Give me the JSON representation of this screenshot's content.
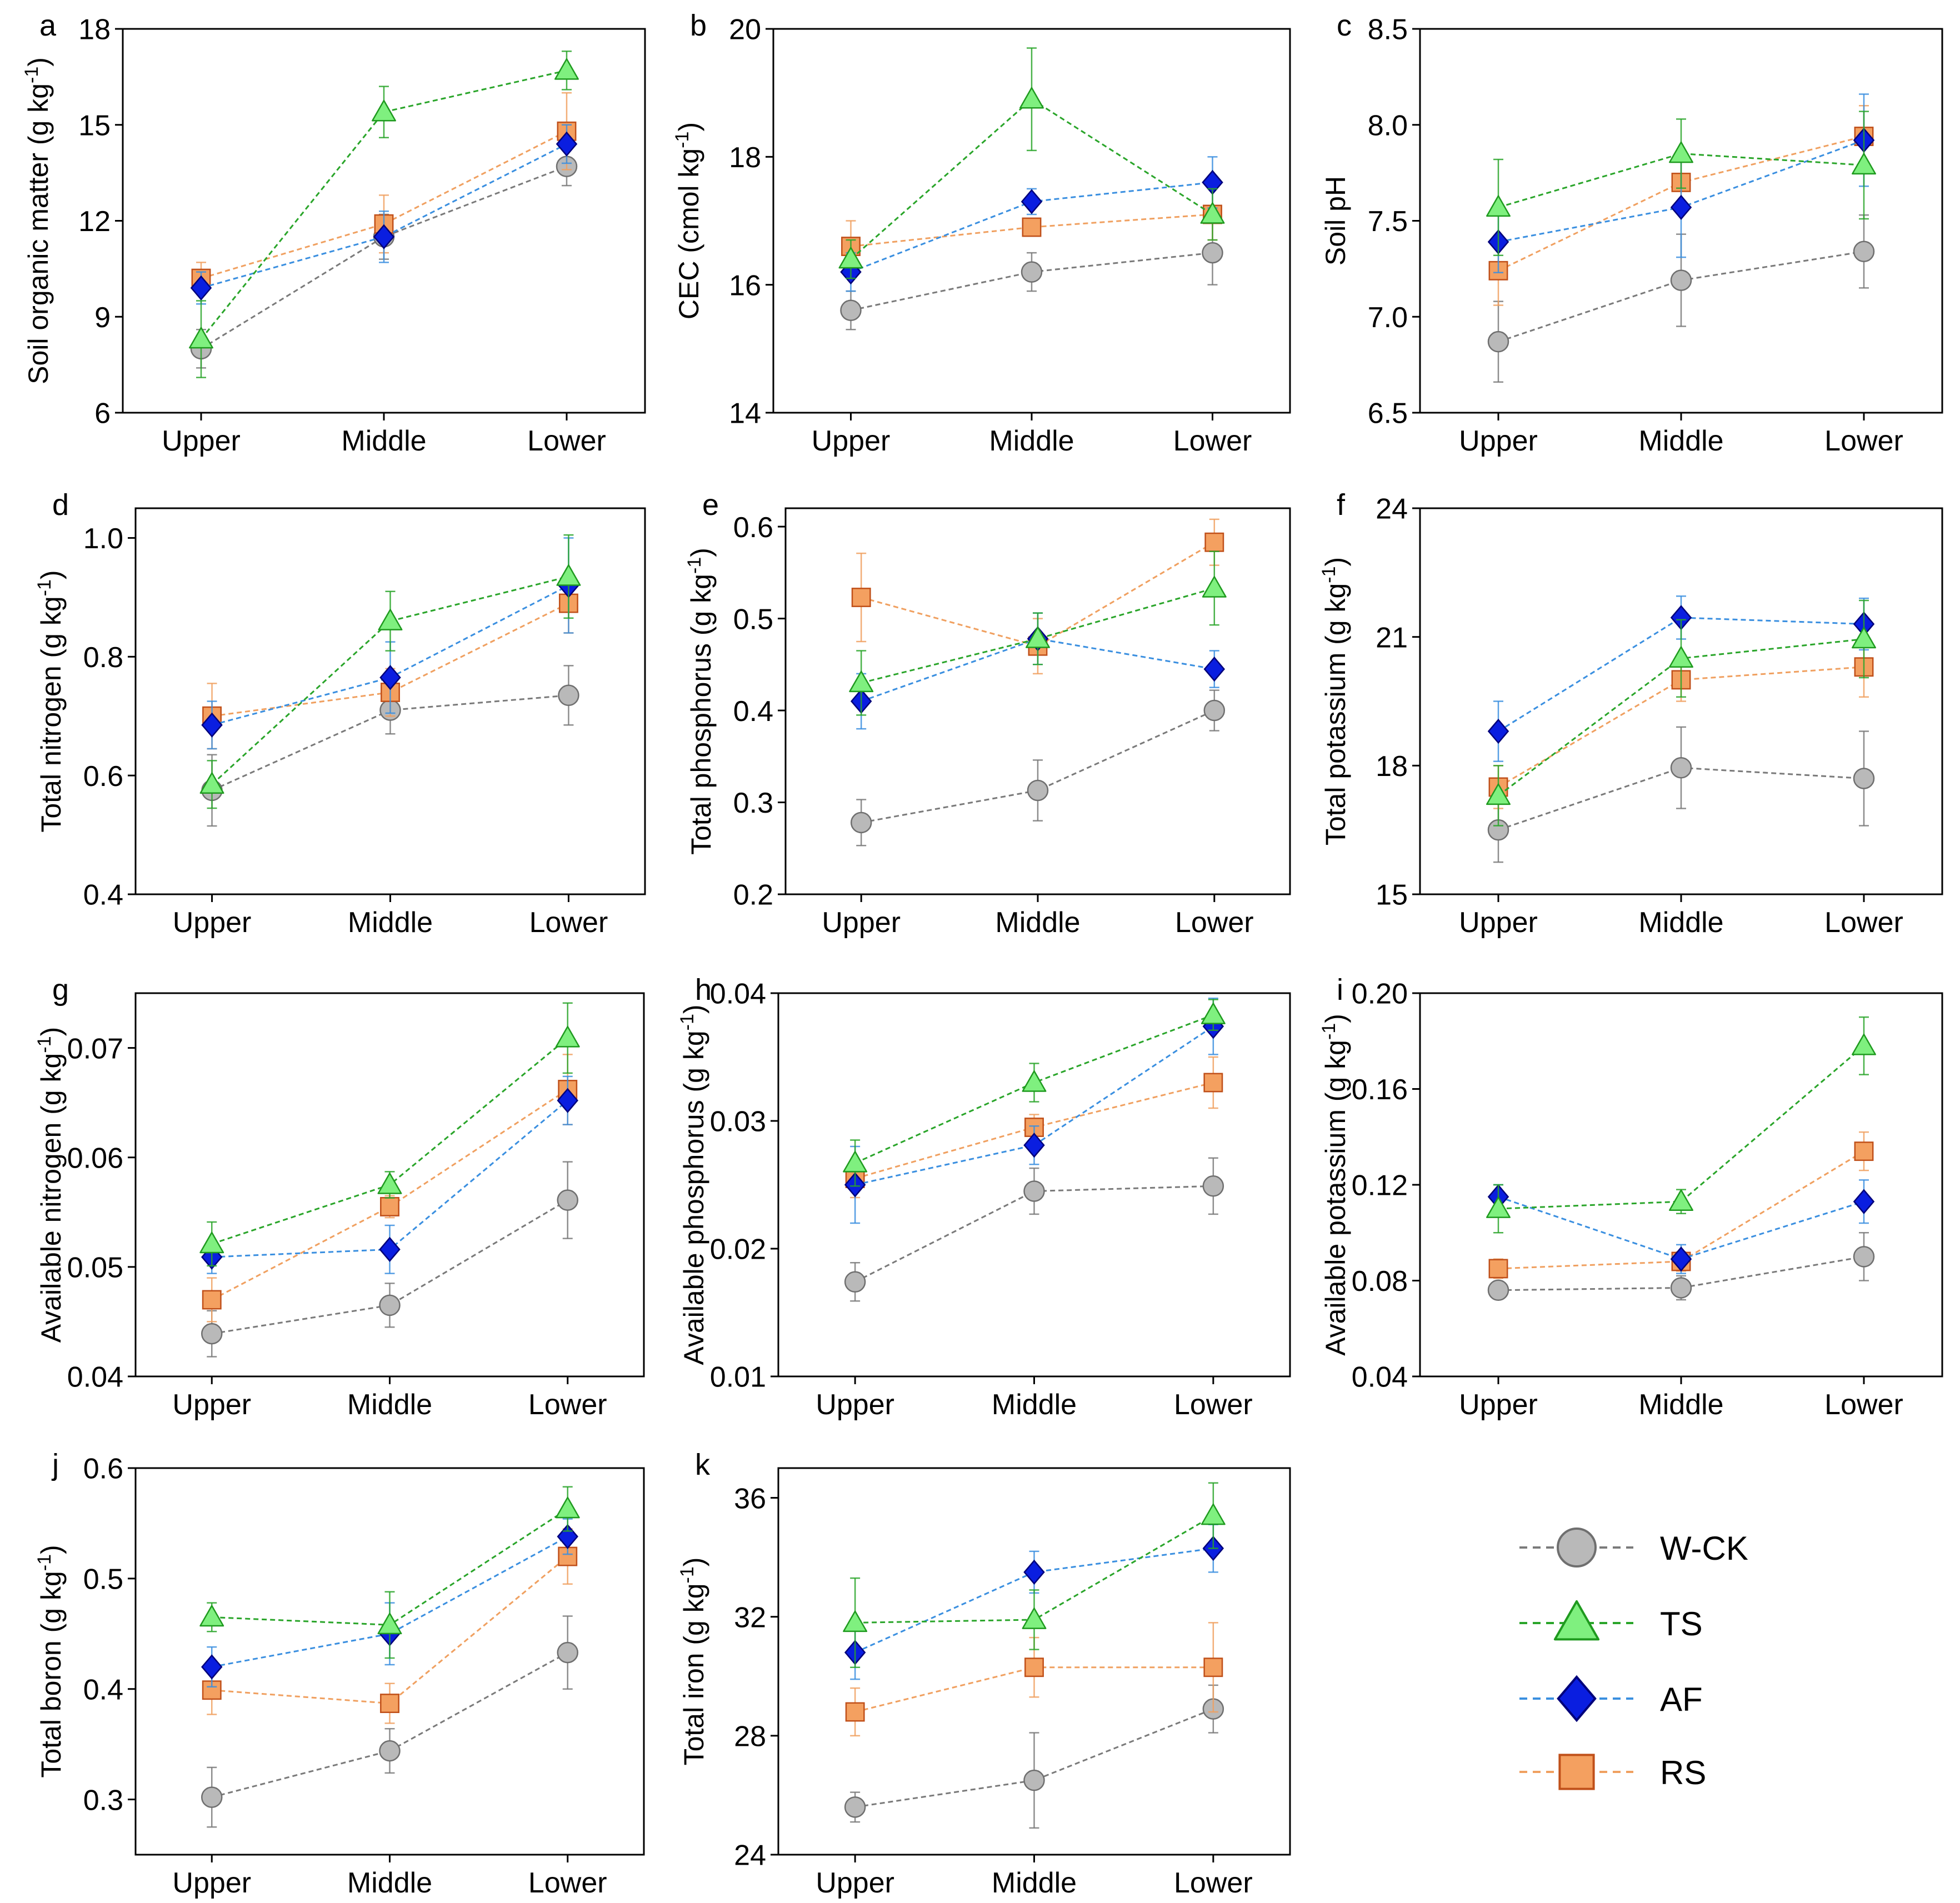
{
  "categories": [
    "Upper",
    "Middle",
    "Lower"
  ],
  "series": [
    {
      "key": "WCK",
      "name": "W-CK",
      "marker": "circle",
      "fill": "#b9b9b9",
      "stroke": "#6f6f6f",
      "line": "#7a7a7a"
    },
    {
      "key": "TS",
      "name": "TS",
      "marker": "triangle",
      "fill": "#7ff07f",
      "stroke": "#1f9a1f",
      "line": "#2aa52a"
    },
    {
      "key": "AF",
      "name": "AF",
      "marker": "diamond",
      "fill": "#0a1ee0",
      "stroke": "#00007a",
      "line": "#3a8fe0"
    },
    {
      "key": "RS",
      "name": "RS",
      "marker": "square",
      "fill": "#f4a060",
      "stroke": "#c0501a",
      "line": "#f0a060"
    }
  ],
  "chart_data": [
    {
      "id": "a",
      "type": "line",
      "panel_label": "a",
      "ylabel": "Soil organic matter (g kg",
      "ylabel_sup": "-1",
      "ylabel_end": ")",
      "ylim": [
        6,
        18
      ],
      "yticks": [
        "6",
        "9",
        "12",
        "15",
        "18"
      ],
      "series": {
        "WCK": {
          "values": [
            8.0,
            11.5,
            13.7
          ],
          "err": [
            0.6,
            0.7,
            0.6
          ]
        },
        "TS": {
          "values": [
            8.3,
            15.4,
            16.7
          ],
          "err": [
            1.2,
            0.8,
            0.6
          ]
        },
        "AF": {
          "values": [
            9.9,
            11.5,
            14.4
          ],
          "err": [
            0.5,
            0.8,
            0.6
          ]
        },
        "RS": {
          "values": [
            10.2,
            11.9,
            14.8
          ],
          "err": [
            0.5,
            0.9,
            1.2
          ]
        }
      }
    },
    {
      "id": "b",
      "type": "line",
      "panel_label": "b",
      "ylabel": "CEC (cmol kg",
      "ylabel_sup": "-1",
      "ylabel_end": ")",
      "ylim": [
        14,
        20
      ],
      "yticks": [
        "14",
        "16",
        "18",
        "20"
      ],
      "series": {
        "WCK": {
          "values": [
            15.6,
            16.2,
            16.5
          ],
          "err": [
            0.3,
            0.3,
            0.5
          ]
        },
        "TS": {
          "values": [
            16.4,
            18.9,
            17.1
          ],
          "err": [
            0.3,
            0.8,
            0.4
          ]
        },
        "AF": {
          "values": [
            16.2,
            17.3,
            17.6
          ],
          "err": [
            0.3,
            0.2,
            0.4
          ]
        },
        "RS": {
          "values": [
            16.6,
            16.9,
            17.1
          ],
          "err": [
            0.4,
            0.1,
            0.4
          ]
        }
      }
    },
    {
      "id": "c",
      "type": "line",
      "panel_label": "c",
      "ylabel": "Soil pH",
      "ylabel_sup": "",
      "ylabel_end": "",
      "ylim": [
        6.5,
        8.5
      ],
      "yticks": [
        "6.5",
        "7.0",
        "7.5",
        "8.0",
        "8.5"
      ],
      "series": {
        "WCK": {
          "values": [
            6.87,
            7.19,
            7.34
          ],
          "err": [
            0.21,
            0.24,
            0.19
          ]
        },
        "TS": {
          "values": [
            7.57,
            7.85,
            7.79
          ],
          "err": [
            0.25,
            0.18,
            0.28
          ]
        },
        "AF": {
          "values": [
            7.39,
            7.57,
            7.92
          ],
          "err": [
            0.16,
            0.26,
            0.24
          ]
        },
        "RS": {
          "values": [
            7.24,
            7.7,
            7.94
          ],
          "err": [
            0.18,
            0.12,
            0.16
          ]
        }
      }
    },
    {
      "id": "d",
      "type": "line",
      "panel_label": "d",
      "ylabel": "Total nitrogen (g kg",
      "ylabel_sup": "-1",
      "ylabel_end": ")",
      "ylim": [
        0.4,
        1.05
      ],
      "yticks": [
        "0.4",
        "0.6",
        "0.8",
        "1.0"
      ],
      "series": {
        "WCK": {
          "values": [
            0.575,
            0.71,
            0.735
          ],
          "err": [
            0.06,
            0.04,
            0.05
          ]
        },
        "TS": {
          "values": [
            0.585,
            0.86,
            0.935
          ],
          "err": [
            0.04,
            0.05,
            0.07
          ]
        },
        "AF": {
          "values": [
            0.685,
            0.765,
            0.92
          ],
          "err": [
            0.04,
            0.06,
            0.08
          ]
        },
        "RS": {
          "values": [
            0.7,
            0.74,
            0.89
          ],
          "err": [
            0.055,
            0.04,
            0.05
          ]
        }
      }
    },
    {
      "id": "e",
      "type": "line",
      "panel_label": "e",
      "ylabel": "Total phosphorus (g kg",
      "ylabel_sup": "-1",
      "ylabel_end": ")",
      "ylim": [
        0.2,
        0.62
      ],
      "yticks": [
        "0.2",
        "0.3",
        "0.4",
        "0.5",
        "0.6"
      ],
      "series": {
        "WCK": {
          "values": [
            0.278,
            0.313,
            0.4
          ],
          "err": [
            0.025,
            0.033,
            0.022
          ]
        },
        "TS": {
          "values": [
            0.43,
            0.478,
            0.533
          ],
          "err": [
            0.035,
            0.028,
            0.04
          ]
        },
        "AF": {
          "values": [
            0.41,
            0.478,
            0.445
          ],
          "err": [
            0.03,
            0.028,
            0.02
          ]
        },
        "RS": {
          "values": [
            0.523,
            0.47,
            0.583
          ],
          "err": [
            0.048,
            0.03,
            0.025
          ]
        }
      }
    },
    {
      "id": "f",
      "type": "line",
      "panel_label": "f",
      "ylabel": "Total potassium (g kg",
      "ylabel_sup": "-1",
      "ylabel_end": ")",
      "ylim": [
        15,
        24
      ],
      "yticks": [
        "15",
        "18",
        "21",
        "24"
      ],
      "series": {
        "WCK": {
          "values": [
            16.5,
            17.95,
            17.7
          ],
          "err": [
            0.75,
            0.95,
            1.1
          ]
        },
        "TS": {
          "values": [
            17.3,
            20.5,
            20.95
          ],
          "err": [
            0.7,
            0.9,
            0.9
          ]
        },
        "AF": {
          "values": [
            18.8,
            21.45,
            21.3
          ],
          "err": [
            0.7,
            0.5,
            0.6
          ]
        },
        "RS": {
          "values": [
            17.5,
            20.0,
            20.3
          ],
          "err": [
            0.5,
            0.5,
            0.7
          ]
        }
      }
    },
    {
      "id": "g",
      "type": "line",
      "panel_label": "g",
      "ylabel": "Available nitrogen (g kg",
      "ylabel_sup": "-1",
      "ylabel_end": ")",
      "ylim": [
        0.04,
        0.075
      ],
      "yticks": [
        "0.04",
        "0.05",
        "0.06",
        "0.07"
      ],
      "series": {
        "WCK": {
          "values": [
            0.0439,
            0.0465,
            0.0561
          ],
          "err": [
            0.0021,
            0.002,
            0.0035
          ]
        },
        "TS": {
          "values": [
            0.0521,
            0.0575,
            0.0709
          ],
          "err": [
            0.002,
            0.0012,
            0.0032
          ]
        },
        "AF": {
          "values": [
            0.0509,
            0.0516,
            0.0652
          ],
          "err": [
            0.0015,
            0.0022,
            0.0022
          ]
        },
        "RS": {
          "values": [
            0.047,
            0.0555,
            0.0662
          ],
          "err": [
            0.002,
            0.001,
            0.0032
          ]
        }
      }
    },
    {
      "id": "h",
      "type": "line",
      "panel_label": "h",
      "ylabel": "Available phosphorus (g kg",
      "ylabel_sup": "-1",
      "ylabel_end": ")",
      "ylim": [
        0.01,
        0.04
      ],
      "yticks": [
        "0.01",
        "0.02",
        "0.03",
        "0.04"
      ],
      "series": {
        "WCK": {
          "values": [
            0.0174,
            0.0245,
            0.0249
          ],
          "err": [
            0.0015,
            0.0018,
            0.0022
          ]
        },
        "TS": {
          "values": [
            0.0267,
            0.033,
            0.0383
          ],
          "err": [
            0.0018,
            0.0015,
            0.0012
          ]
        },
        "AF": {
          "values": [
            0.025,
            0.0281,
            0.0374
          ],
          "err": [
            0.003,
            0.0015,
            0.0022
          ]
        },
        "RS": {
          "values": [
            0.0255,
            0.0295,
            0.033
          ],
          "err": [
            0.0015,
            0.001,
            0.002
          ]
        }
      }
    },
    {
      "id": "i",
      "type": "line",
      "panel_label": "i",
      "ylabel": "Available potassium (g kg",
      "ylabel_sup": "-1",
      "ylabel_end": ")",
      "ylim": [
        0.04,
        0.2
      ],
      "yticks": [
        "0.04",
        "0.08",
        "0.12",
        "0.16",
        "0.20"
      ],
      "series": {
        "WCK": {
          "values": [
            0.076,
            0.077,
            0.09
          ],
          "err": [
            0.003,
            0.005,
            0.01
          ]
        },
        "TS": {
          "values": [
            0.11,
            0.113,
            0.178
          ],
          "err": [
            0.01,
            0.005,
            0.012
          ]
        },
        "AF": {
          "values": [
            0.115,
            0.089,
            0.113
          ],
          "err": [
            0.005,
            0.006,
            0.009
          ]
        },
        "RS": {
          "values": [
            0.085,
            0.088,
            0.134
          ],
          "err": [
            0.004,
            0.004,
            0.008
          ]
        }
      }
    },
    {
      "id": "j",
      "type": "line",
      "panel_label": "j",
      "ylabel": "Total boron (g kg",
      "ylabel_sup": "-1",
      "ylabel_end": ")",
      "ylim": [
        0.25,
        0.6
      ],
      "yticks": [
        "0.3",
        "0.4",
        "0.5",
        "0.6"
      ],
      "series": {
        "WCK": {
          "values": [
            0.302,
            0.344,
            0.433
          ],
          "err": [
            0.027,
            0.02,
            0.033
          ]
        },
        "TS": {
          "values": [
            0.465,
            0.458,
            0.563
          ],
          "err": [
            0.013,
            0.03,
            0.02
          ]
        },
        "AF": {
          "values": [
            0.42,
            0.45,
            0.538
          ],
          "err": [
            0.018,
            0.028,
            0.016
          ]
        },
        "RS": {
          "values": [
            0.399,
            0.387,
            0.52
          ],
          "err": [
            0.022,
            0.018,
            0.025
          ]
        }
      }
    },
    {
      "id": "k",
      "type": "line",
      "panel_label": "k",
      "ylabel": "Total iron (g kg",
      "ylabel_sup": "-1",
      "ylabel_end": ")",
      "ylim": [
        24,
        37
      ],
      "yticks": [
        "24",
        "28",
        "32",
        "36"
      ],
      "series": {
        "WCK": {
          "values": [
            25.6,
            26.5,
            28.9
          ],
          "err": [
            0.5,
            1.6,
            0.8
          ]
        },
        "TS": {
          "values": [
            31.8,
            31.9,
            35.4
          ],
          "err": [
            1.5,
            1.0,
            1.1
          ]
        },
        "AF": {
          "values": [
            30.8,
            33.5,
            34.3
          ],
          "err": [
            0.9,
            0.7,
            0.8
          ]
        },
        "RS": {
          "values": [
            28.8,
            30.3,
            30.3
          ],
          "err": [
            0.8,
            1.0,
            1.5
          ]
        }
      }
    }
  ]
}
